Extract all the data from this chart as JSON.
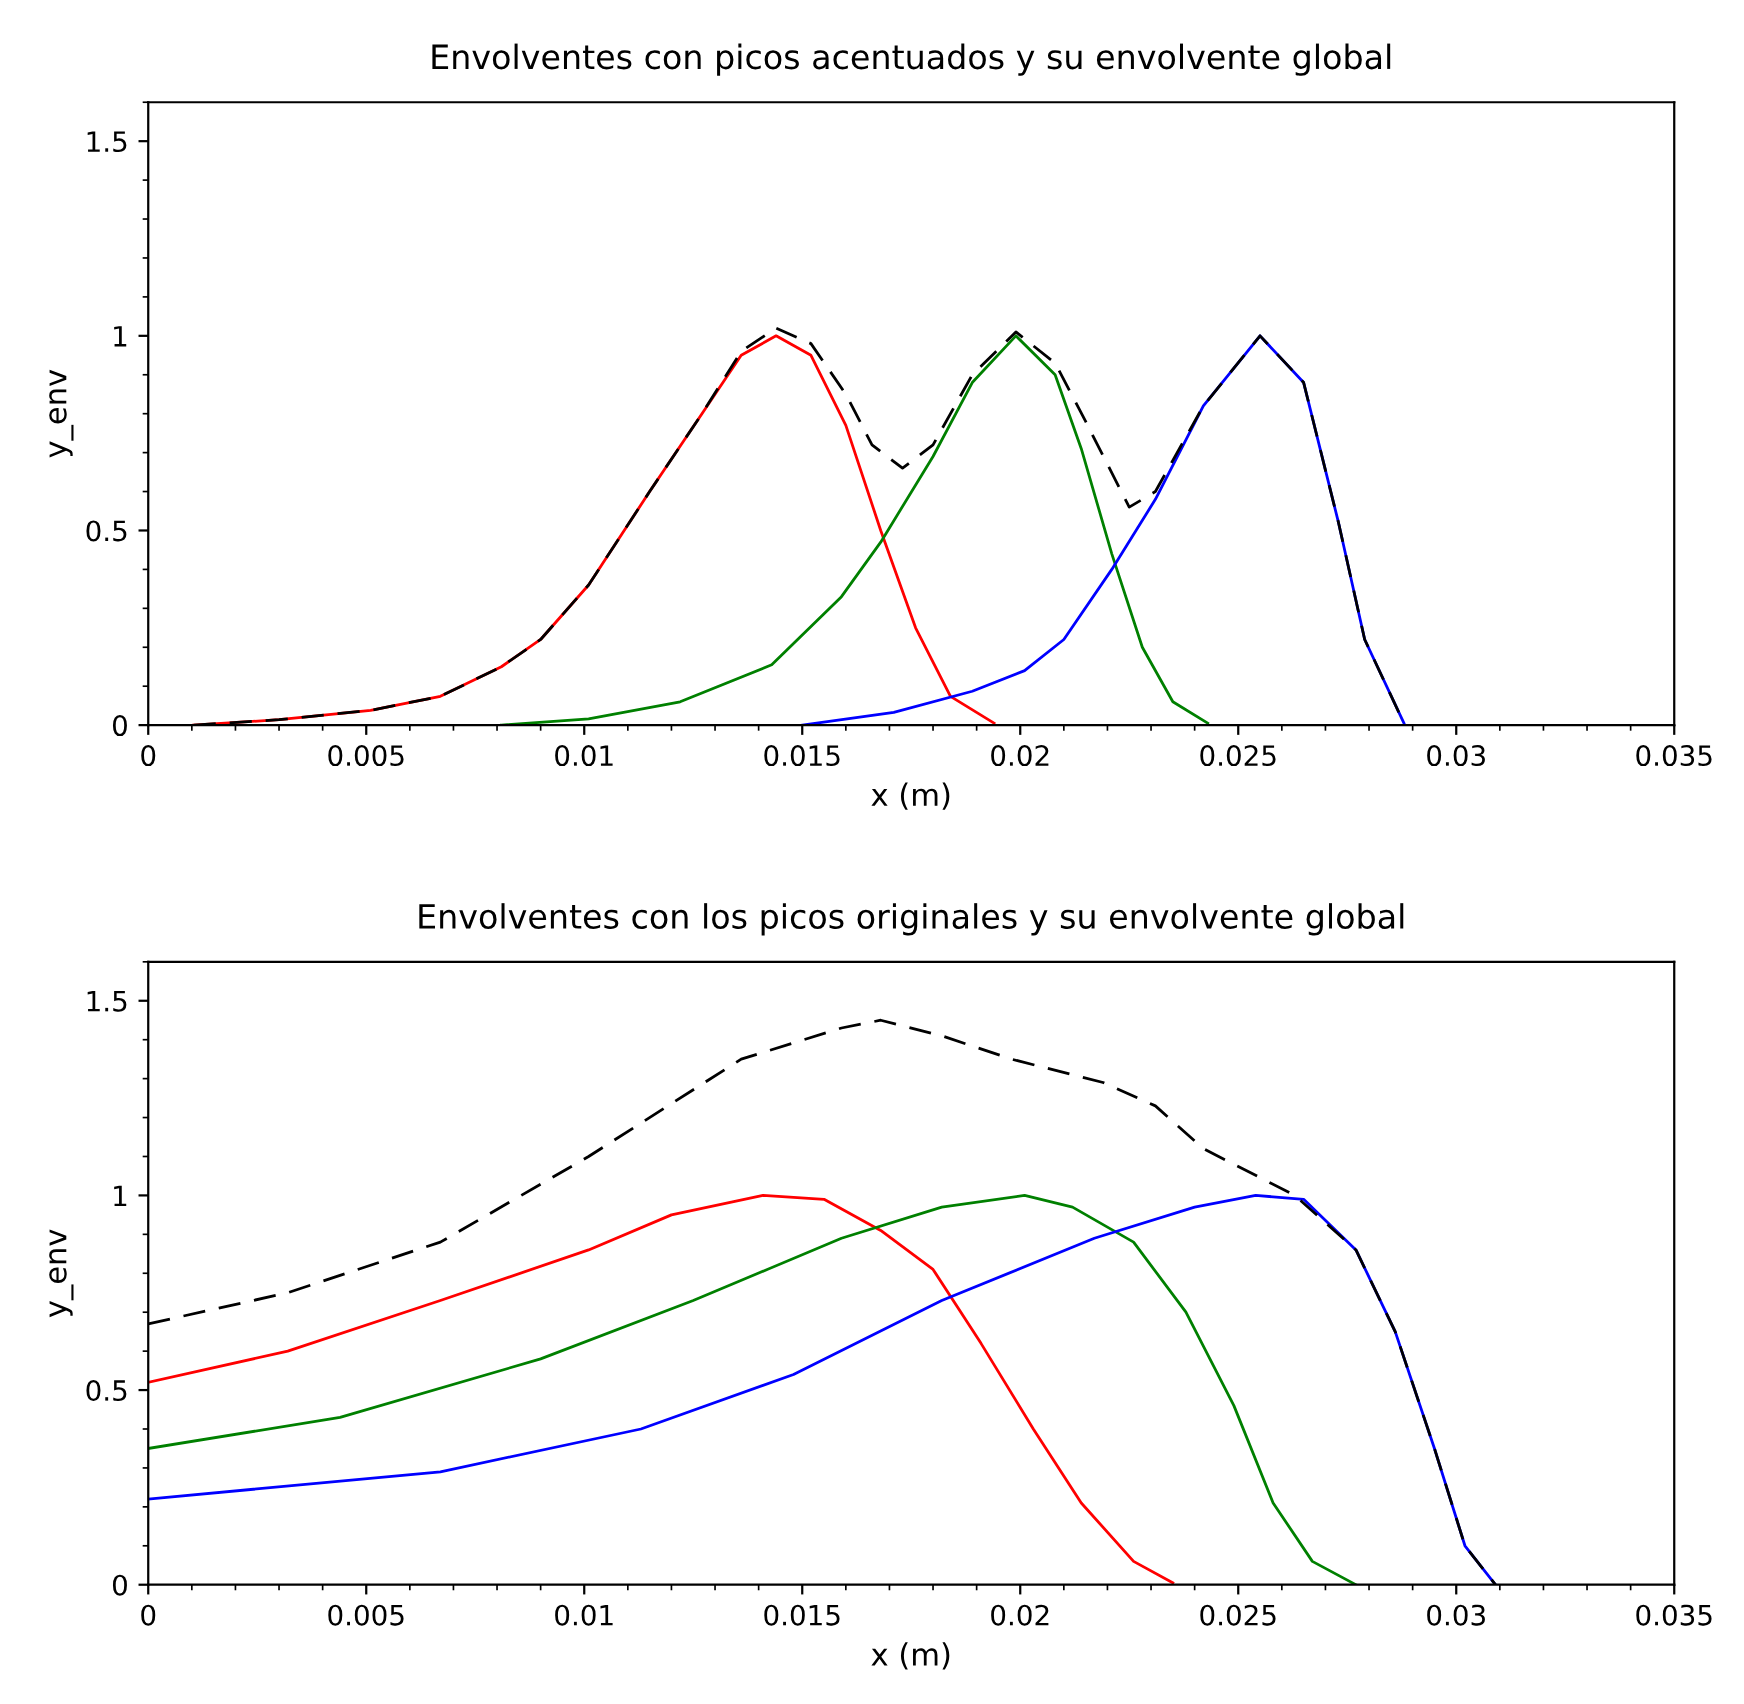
{
  "chart_data": [
    {
      "type": "line",
      "title": "Envolventes con picos acentuados y su envolvente global",
      "xlabel": "x (m)",
      "ylabel": "y_env",
      "xlim": [
        0,
        0.035
      ],
      "ylim": [
        0,
        1.6
      ],
      "xticks": [
        0,
        0.005,
        0.01,
        0.015,
        0.02,
        0.025,
        0.03,
        0.035
      ],
      "yticks": [
        0,
        0.5,
        1,
        1.5
      ],
      "grid": false,
      "legend": false,
      "series": [
        {
          "color": "#ff0000",
          "x": [
            0.00104,
            0.003,
            0.0051,
            0.0067,
            0.0081,
            0.009,
            0.0101,
            0.0115,
            0.0127,
            0.0136,
            0.0144,
            0.0152,
            0.016,
            0.0168,
            0.0176,
            0.0184,
            0.0194
          ],
          "values": [
            0,
            0.014,
            0.038,
            0.074,
            0.15,
            0.22,
            0.36,
            0.6,
            0.8,
            0.95,
            1.0,
            0.95,
            0.77,
            0.5,
            0.25,
            0.074,
            0.005
          ]
        },
        {
          "color": "#008000",
          "x": [
            0.0081,
            0.0101,
            0.0122,
            0.0143,
            0.0159,
            0.0168,
            0.018,
            0.0189,
            0.0199,
            0.0208,
            0.0214,
            0.0221,
            0.0228,
            0.0235,
            0.0243
          ],
          "values": [
            0,
            0.016,
            0.06,
            0.155,
            0.33,
            0.47,
            0.69,
            0.88,
            1.0,
            0.9,
            0.71,
            0.44,
            0.2,
            0.06,
            0.005
          ]
        },
        {
          "color": "#0000ff",
          "x": [
            0.015,
            0.0171,
            0.0189,
            0.0201,
            0.021,
            0.0221,
            0.0231,
            0.0242,
            0.0255,
            0.0265,
            0.0273,
            0.0279,
            0.0288
          ],
          "values": [
            0,
            0.033,
            0.087,
            0.14,
            0.22,
            0.4,
            0.58,
            0.82,
            1.0,
            0.88,
            0.52,
            0.22,
            0.005
          ]
        },
        {
          "color": "#000000",
          "line_style": "dashed",
          "x": [
            0.00104,
            0.003,
            0.0051,
            0.0067,
            0.0081,
            0.009,
            0.0101,
            0.0115,
            0.0127,
            0.0136,
            0.0144,
            0.0152,
            0.016,
            0.0166,
            0.0173,
            0.018,
            0.0189,
            0.0199,
            0.0208,
            0.0215,
            0.0225,
            0.0231,
            0.0242,
            0.0255,
            0.0265,
            0.0273,
            0.0279,
            0.0288
          ],
          "values": [
            0,
            0.014,
            0.038,
            0.074,
            0.15,
            0.22,
            0.36,
            0.6,
            0.8,
            0.96,
            1.02,
            0.98,
            0.85,
            0.72,
            0.66,
            0.72,
            0.9,
            1.01,
            0.93,
            0.78,
            0.56,
            0.6,
            0.82,
            1.0,
            0.88,
            0.52,
            0.22,
            0.005
          ]
        }
      ]
    },
    {
      "type": "line",
      "title": "Envolventes con los picos originales y su envolvente global",
      "xlabel": "x (m)",
      "ylabel": "y_env",
      "xlim": [
        0,
        0.035
      ],
      "ylim": [
        0,
        1.6
      ],
      "xticks": [
        0,
        0.005,
        0.01,
        0.015,
        0.02,
        0.025,
        0.03,
        0.035
      ],
      "yticks": [
        0,
        0.5,
        1,
        1.5
      ],
      "grid": false,
      "legend": false,
      "series": [
        {
          "color": "#ff0000",
          "x": [
            0,
            0.0032,
            0.0067,
            0.0101,
            0.012,
            0.0141,
            0.0155,
            0.0168,
            0.018,
            0.0191,
            0.0203,
            0.0214,
            0.0226,
            0.0235
          ],
          "values": [
            0.52,
            0.6,
            0.73,
            0.86,
            0.95,
            1.0,
            0.99,
            0.91,
            0.81,
            0.62,
            0.4,
            0.21,
            0.06,
            0.005
          ]
        },
        {
          "color": "#008000",
          "x": [
            0,
            0.0044,
            0.009,
            0.0125,
            0.0159,
            0.0182,
            0.0201,
            0.0212,
            0.0226,
            0.0238,
            0.0249,
            0.0258,
            0.0267,
            0.0277
          ],
          "values": [
            0.35,
            0.43,
            0.58,
            0.73,
            0.89,
            0.97,
            1.0,
            0.97,
            0.88,
            0.7,
            0.46,
            0.21,
            0.06,
            0
          ]
        },
        {
          "color": "#0000ff",
          "x": [
            0,
            0.0067,
            0.0113,
            0.0148,
            0.0182,
            0.0217,
            0.024,
            0.0254,
            0.0265,
            0.0277,
            0.0286,
            0.0295,
            0.0302,
            0.0309
          ],
          "values": [
            0.22,
            0.29,
            0.4,
            0.54,
            0.73,
            0.89,
            0.97,
            1.0,
            0.99,
            0.86,
            0.65,
            0.35,
            0.1,
            0
          ]
        },
        {
          "color": "#000000",
          "line_style": "dashed",
          "x": [
            0,
            0.0032,
            0.0067,
            0.0101,
            0.0136,
            0.0159,
            0.0168,
            0.0182,
            0.0198,
            0.0219,
            0.0231,
            0.0242,
            0.0263,
            0.0277,
            0.0286,
            0.0295,
            0.0302,
            0.0309
          ],
          "values": [
            0.67,
            0.75,
            0.88,
            1.1,
            1.35,
            1.43,
            1.45,
            1.41,
            1.35,
            1.29,
            1.23,
            1.12,
            1.0,
            0.86,
            0.65,
            0.35,
            0.1,
            0
          ]
        }
      ]
    }
  ]
}
